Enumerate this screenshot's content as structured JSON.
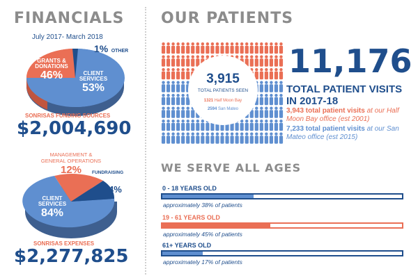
{
  "financials": {
    "heading": "FINANCIALS",
    "period": "July 2017- March 2018",
    "funding": {
      "caption": "SONRISAS FUNDING SOURCES",
      "amount": "$2,004,690",
      "slices": [
        {
          "label": "CLIENT SERVICES",
          "pct": "53%",
          "value": 53,
          "color": "#5f8fd0"
        },
        {
          "label": "GRANTS & DONATIONS",
          "pct": "46%",
          "value": 46,
          "color": "#ea6f55"
        },
        {
          "label": "OTHER",
          "pct": "1%",
          "value": 1,
          "color": "#1f4e8c"
        }
      ],
      "client_label": "CLIENT\nSERVICES",
      "grants_label": "GRANTS &\nDONATIONS",
      "other_pct": "1%",
      "other_label": "OTHER"
    },
    "expenses": {
      "caption": "SONRISAS EXPENSES",
      "amount": "$2,277,825",
      "slices": [
        {
          "label": "CLIENT SERVICES",
          "pct": "84%",
          "value": 84,
          "color": "#5f8fd0"
        },
        {
          "label": "MANAGEMENT & GENERAL OPERATIONS",
          "pct": "12%",
          "value": 12,
          "color": "#ea6f55"
        },
        {
          "label": "FUNDRAISING",
          "pct": "4%",
          "value": 4,
          "color": "#1f4e8c"
        }
      ],
      "mgmt_label": "MANAGEMENT &\nGENERAL OPERATIONS",
      "mgmt_pct": "12%",
      "fundraising_label": "FUNDRAISING",
      "fundraising_pct": "4%",
      "client_label": "CLIENT\nSERVICES",
      "client_pct": "84%"
    }
  },
  "patients": {
    "heading": "OUR PATIENTS",
    "total_seen": "3,915",
    "total_seen_label": "TOTAL PATIENTS SEEN",
    "hmb_count": "1321",
    "hmb_label": "Half Moon Bay",
    "sm_count": "2594",
    "sm_label": "San Mateo",
    "visits_total": "11,176",
    "visits_label": "TOTAL PATIENT VISITS IN 2017-18",
    "hmb_visits_bold": "3,943 total patient visits",
    "hmb_visits_rest": " at our Half Moon Bay office (est 2001)",
    "sm_visits_bold": "7,233 total patient visits",
    "sm_visits_rest": " at our San Mateo office (est 2015)",
    "colors": {
      "coral": "#ea6f55",
      "blue": "#5f8fd0",
      "navy": "#1f4e8c"
    }
  },
  "ages": {
    "heading": "WE SERVE ALL AGES",
    "groups": [
      {
        "label": "0 - 18 YEARS OLD",
        "note": "approximately 38% of patients",
        "fraction": 0.38,
        "color": "#5f8fd0"
      },
      {
        "label": "19 - 61 YEARS OLD",
        "note": "approximately 45% of patients",
        "fraction": 0.45,
        "color": "#ea6f55"
      },
      {
        "label": "61+ YEARS OLD",
        "note": "approximately 17% of patients",
        "fraction": 0.17,
        "color": "#5f8fd0"
      }
    ]
  }
}
